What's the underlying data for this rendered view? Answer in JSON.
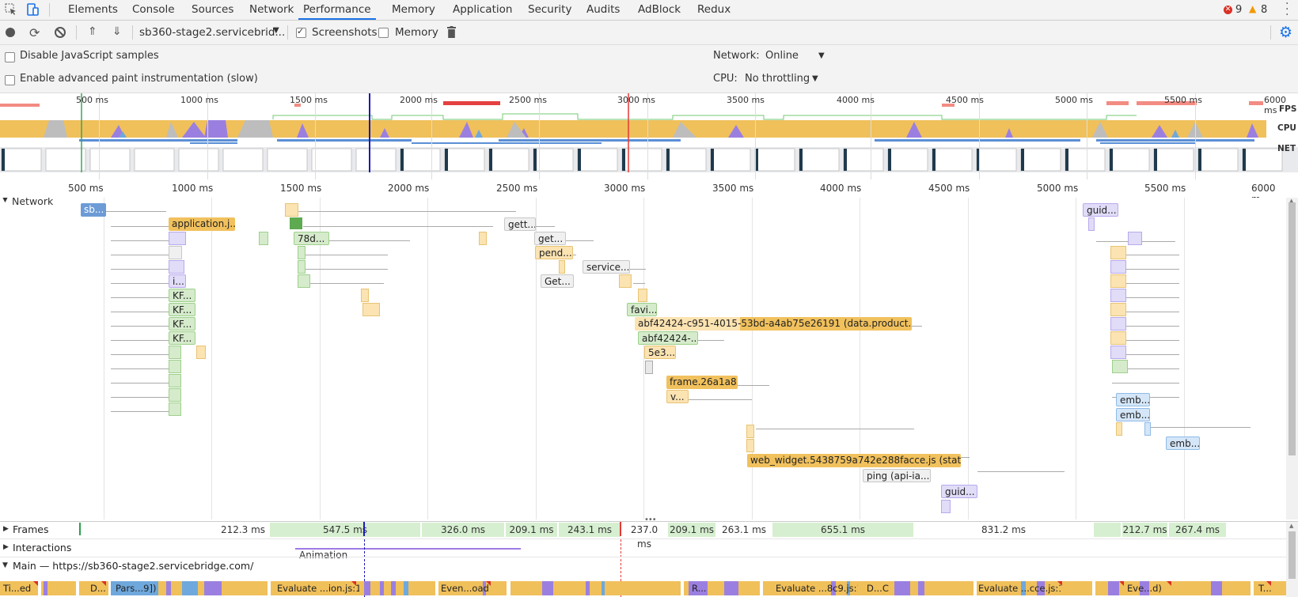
{
  "tabs": {
    "items": [
      "Elements",
      "Console",
      "Sources",
      "Network",
      "Performance",
      "Memory",
      "Application",
      "Security",
      "Audits",
      "AdBlock",
      "Redux"
    ],
    "active": "Performance"
  },
  "status": {
    "errors": "9",
    "warnings": "8"
  },
  "toolbar": {
    "url_select": "sb360-stage2.servicebrid...",
    "screenshots_label": "Screenshots",
    "memory_label": "Memory"
  },
  "settings": {
    "disable_js_label": "Disable JavaScript samples",
    "advanced_paint_label": "Enable advanced paint instrumentation (slow)",
    "network_label": "Network:",
    "network_value": "Online",
    "cpu_label": "CPU:",
    "cpu_value": "No throttling"
  },
  "overview": {
    "ticks": [
      "500 ms",
      "1000 ms",
      "1500 ms",
      "2000 ms",
      "2500 ms",
      "3000 ms",
      "3500 ms",
      "4000 ms",
      "4500 ms",
      "5000 ms",
      "5500 ms",
      "6000 ms"
    ],
    "fps_label": "FPS",
    "cpu_label": "CPU",
    "net_label": "NET"
  },
  "ruler": {
    "ticks": [
      "500 ms",
      "1000 ms",
      "1500 ms",
      "2000 ms",
      "2500 ms",
      "3000 ms",
      "3500 ms",
      "4000 ms",
      "4500 ms",
      "5000 ms",
      "5500 ms",
      "6000 m"
    ]
  },
  "network": {
    "title": "Network",
    "requests": [
      {
        "label": "sb...",
        "color": "#6c9bd6"
      },
      {
        "label": "application.j...",
        "color": "#f1c15d"
      },
      {
        "label": "78d...",
        "color": "#d5ebcb"
      },
      {
        "label": "gett...",
        "color": "#f0f0f0"
      },
      {
        "label": "get...",
        "color": "#f0f0f0"
      },
      {
        "label": "pend...",
        "color": "#fbe3b2"
      },
      {
        "label": "service...",
        "color": "#f0f0f0"
      },
      {
        "label": "Get...",
        "color": "#f0f0f0"
      },
      {
        "label": "i...",
        "color": "#e1dcf7"
      },
      {
        "label": "KF...",
        "color": "#d5ebcb"
      },
      {
        "label": "KF...",
        "color": "#d5ebcb"
      },
      {
        "label": "KF...",
        "color": "#d5ebcb"
      },
      {
        "label": "KF...",
        "color": "#d5ebcb"
      },
      {
        "label": "favi...",
        "color": "#d5ebcb"
      },
      {
        "label": "abf42424-c951-4015-53bd-a4ab75e26191 (data.product.ser...",
        "color": "#fbe3b2"
      },
      {
        "label": "abf42424-...",
        "color": "#d5ebcb"
      },
      {
        "label": "5e3...",
        "color": "#fbe3b2"
      },
      {
        "label": "frame.26a1a8...",
        "color": "#f1c15d"
      },
      {
        "label": "v...",
        "color": "#fbe3b2"
      },
      {
        "label": "web_widget.5438759a742e288facce.js (static.z...",
        "color": "#f1c15d"
      },
      {
        "label": "ping (api-ia...",
        "color": "#f0f0f0"
      },
      {
        "label": "guid...",
        "color": "#e1dcf7"
      },
      {
        "label": "guid...",
        "color": "#e1dcf7"
      },
      {
        "label": "emb...",
        "color": "#d4e6f8"
      },
      {
        "label": "emb...",
        "color": "#d4e6f8"
      },
      {
        "label": "emb...",
        "color": "#d4e6f8"
      }
    ]
  },
  "tracks": {
    "frames_label": "Frames",
    "interactions_label": "Interactions",
    "main_label": "Main — https://sb360-stage2.servicebridge.com/",
    "animation_label": "Animation",
    "frames": [
      "212.3 ms",
      "547.5 ms",
      "326.0 ms",
      "209.1 ms",
      "243.1 ms",
      "237.0 ms",
      "209.1 ms",
      "263.1 ms",
      "655.1 ms",
      "831.2 ms",
      "212.7 ms",
      "267.4 ms"
    ],
    "main_blocks": [
      "Ti...ed",
      "D...",
      "Pars...9])",
      "Evaluate ...ion.js:1)",
      "Even...oad)",
      "R...",
      "Evaluate ...8c9.js:1)",
      "D...C",
      "Evaluate ...cce.js:1)",
      "Eve...d)",
      "T..."
    ]
  }
}
